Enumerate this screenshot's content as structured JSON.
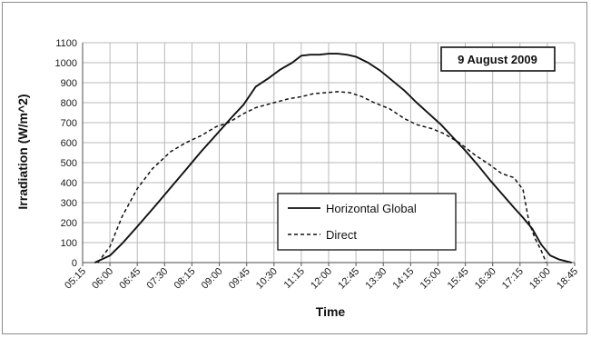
{
  "chart_data": {
    "type": "line",
    "title": "",
    "annotation": "9 August 2009",
    "xlabel": "Time",
    "ylabel": "Irradiation (W/m^2)",
    "ylim": [
      0,
      1100
    ],
    "yticks": [
      0,
      100,
      200,
      300,
      400,
      500,
      600,
      700,
      800,
      900,
      1000,
      1100
    ],
    "xticks": [
      "05:15",
      "06:00",
      "06:45",
      "07:30",
      "08:15",
      "09:00",
      "09:45",
      "10:30",
      "11:15",
      "12:00",
      "12:45",
      "13:30",
      "14:15",
      "15:00",
      "15:45",
      "16:30",
      "17:15",
      "18:00",
      "18:45"
    ],
    "xlim": [
      "05:15",
      "18:45"
    ],
    "grid": true,
    "legend_position": "bottom-center",
    "series": [
      {
        "name": "Horizontal Global",
        "style": "solid",
        "color": "#111111",
        "x": [
          "05:35",
          "06:00",
          "06:20",
          "06:45",
          "07:15",
          "07:40",
          "08:05",
          "08:30",
          "08:55",
          "09:20",
          "09:40",
          "10:00",
          "10:20",
          "10:40",
          "11:00",
          "11:15",
          "11:30",
          "11:45",
          "12:00",
          "12:15",
          "12:30",
          "12:45",
          "13:05",
          "13:25",
          "13:45",
          "14:05",
          "14:25",
          "14:45",
          "15:05",
          "15:25",
          "15:45",
          "16:05",
          "16:25",
          "16:45",
          "17:05",
          "17:20",
          "17:35",
          "17:50",
          "18:05",
          "18:20",
          "18:40"
        ],
        "values": [
          0,
          35,
          95,
          180,
          285,
          375,
          465,
          555,
          640,
          725,
          790,
          880,
          920,
          965,
          1000,
          1035,
          1040,
          1040,
          1045,
          1045,
          1040,
          1030,
          1000,
          960,
          910,
          860,
          800,
          745,
          690,
          625,
          560,
          490,
          415,
          345,
          275,
          225,
          170,
          90,
          35,
          15,
          0
        ]
      },
      {
        "name": "Direct",
        "style": "dashed",
        "color": "#111111",
        "x": [
          "05:40",
          "06:00",
          "06:20",
          "06:45",
          "07:10",
          "07:40",
          "08:05",
          "08:30",
          "08:55",
          "09:15",
          "09:40",
          "10:00",
          "10:30",
          "10:55",
          "11:15",
          "11:35",
          "11:55",
          "12:15",
          "12:35",
          "12:55",
          "13:15",
          "13:40",
          "14:05",
          "14:25",
          "14:50",
          "15:10",
          "15:35",
          "16:00",
          "16:25",
          "16:45",
          "17:05",
          "17:20",
          "17:30",
          "17:40",
          "17:50",
          "17:58"
        ],
        "values": [
          0,
          80,
          230,
          370,
          470,
          555,
          600,
          635,
          680,
          700,
          745,
          775,
          800,
          820,
          830,
          845,
          850,
          855,
          850,
          830,
          800,
          770,
          720,
          690,
          670,
          645,
          600,
          540,
          490,
          445,
          425,
          365,
          200,
          120,
          60,
          0
        ]
      }
    ]
  }
}
